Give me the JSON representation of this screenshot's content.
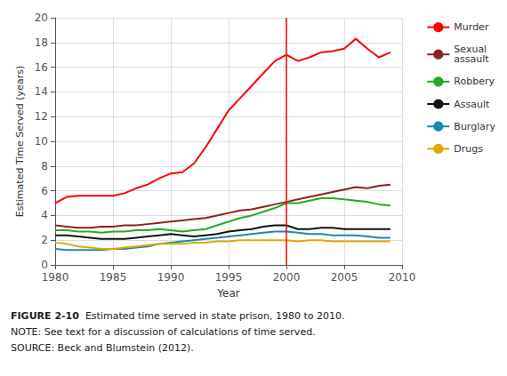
{
  "chart_data": {
    "type": "line",
    "xlabel": "Year",
    "ylabel": "Estimated Time Served (years)",
    "x": [
      1980,
      1981,
      1982,
      1983,
      1984,
      1985,
      1986,
      1987,
      1988,
      1989,
      1990,
      1991,
      1992,
      1993,
      1994,
      1995,
      1996,
      1997,
      1998,
      1999,
      2000,
      2001,
      2002,
      2003,
      2004,
      2005,
      2006,
      2007,
      2008,
      2009
    ],
    "series": [
      {
        "name": "Murder",
        "color": "#ff0000",
        "values": [
          5.0,
          5.5,
          5.6,
          5.6,
          5.6,
          5.6,
          5.8,
          6.2,
          6.5,
          7.0,
          7.4,
          7.5,
          8.2,
          9.5,
          11.0,
          12.5,
          13.5,
          14.5,
          15.5,
          16.5,
          17.0,
          16.5,
          16.8,
          17.2,
          17.3,
          17.5,
          18.3,
          17.5,
          16.8,
          17.2
        ]
      },
      {
        "name": "Sexual\nassault",
        "color": "#8b2222",
        "values": [
          3.2,
          3.1,
          3.0,
          3.0,
          3.1,
          3.1,
          3.2,
          3.2,
          3.3,
          3.4,
          3.5,
          3.6,
          3.7,
          3.8,
          4.0,
          4.2,
          4.4,
          4.5,
          4.7,
          4.9,
          5.1,
          5.3,
          5.5,
          5.7,
          5.9,
          6.1,
          6.3,
          6.2,
          6.4,
          6.5
        ]
      },
      {
        "name": "Robbery",
        "color": "#22aa22",
        "values": [
          2.8,
          2.8,
          2.7,
          2.7,
          2.6,
          2.7,
          2.7,
          2.8,
          2.8,
          2.9,
          2.8,
          2.7,
          2.8,
          2.9,
          3.2,
          3.5,
          3.8,
          4.0,
          4.3,
          4.6,
          5.0,
          5.0,
          5.2,
          5.4,
          5.4,
          5.3,
          5.2,
          5.1,
          4.9,
          4.8
        ]
      },
      {
        "name": "Assault",
        "color": "#111111",
        "values": [
          2.4,
          2.4,
          2.3,
          2.2,
          2.1,
          2.1,
          2.1,
          2.2,
          2.3,
          2.4,
          2.5,
          2.4,
          2.3,
          2.4,
          2.5,
          2.7,
          2.8,
          2.9,
          3.1,
          3.2,
          3.2,
          2.9,
          2.9,
          3.0,
          3.0,
          2.9,
          2.9,
          2.9,
          2.9,
          2.9
        ]
      },
      {
        "name": "Burglary",
        "color": "#1a8aaa",
        "values": [
          1.3,
          1.2,
          1.2,
          1.2,
          1.2,
          1.3,
          1.3,
          1.4,
          1.5,
          1.7,
          1.8,
          1.9,
          2.0,
          2.1,
          2.2,
          2.3,
          2.4,
          2.5,
          2.6,
          2.7,
          2.7,
          2.6,
          2.5,
          2.5,
          2.4,
          2.4,
          2.4,
          2.3,
          2.2,
          2.2
        ]
      },
      {
        "name": "Drugs",
        "color": "#ddaa00",
        "values": [
          1.8,
          1.7,
          1.5,
          1.4,
          1.3,
          1.3,
          1.4,
          1.5,
          1.6,
          1.7,
          1.7,
          1.7,
          1.8,
          1.8,
          1.9,
          1.9,
          2.0,
          2.0,
          2.0,
          2.0,
          2.0,
          1.9,
          2.0,
          2.0,
          1.9,
          1.9,
          1.9,
          1.9,
          1.9,
          1.9
        ]
      }
    ],
    "vline": {
      "x": 2000,
      "color": "#ff0000"
    },
    "xlim": [
      1980,
      2010
    ],
    "ylim": [
      0,
      20
    ],
    "xticks": [
      1980,
      1985,
      1990,
      1995,
      2000,
      2005,
      2010
    ],
    "yticks": [
      0,
      2,
      4,
      6,
      8,
      10,
      12,
      14,
      16,
      18,
      20
    ],
    "grid": true,
    "legend": "right",
    "caption_bold": "FIGURE 2-10",
    "caption": [
      "  Estimated time served in state prison, 1980 to 2010.",
      "NOTE: See text for a discussion of calculations of time served.",
      "SOURCE: Beck and Blumstein (2012)."
    ]
  }
}
